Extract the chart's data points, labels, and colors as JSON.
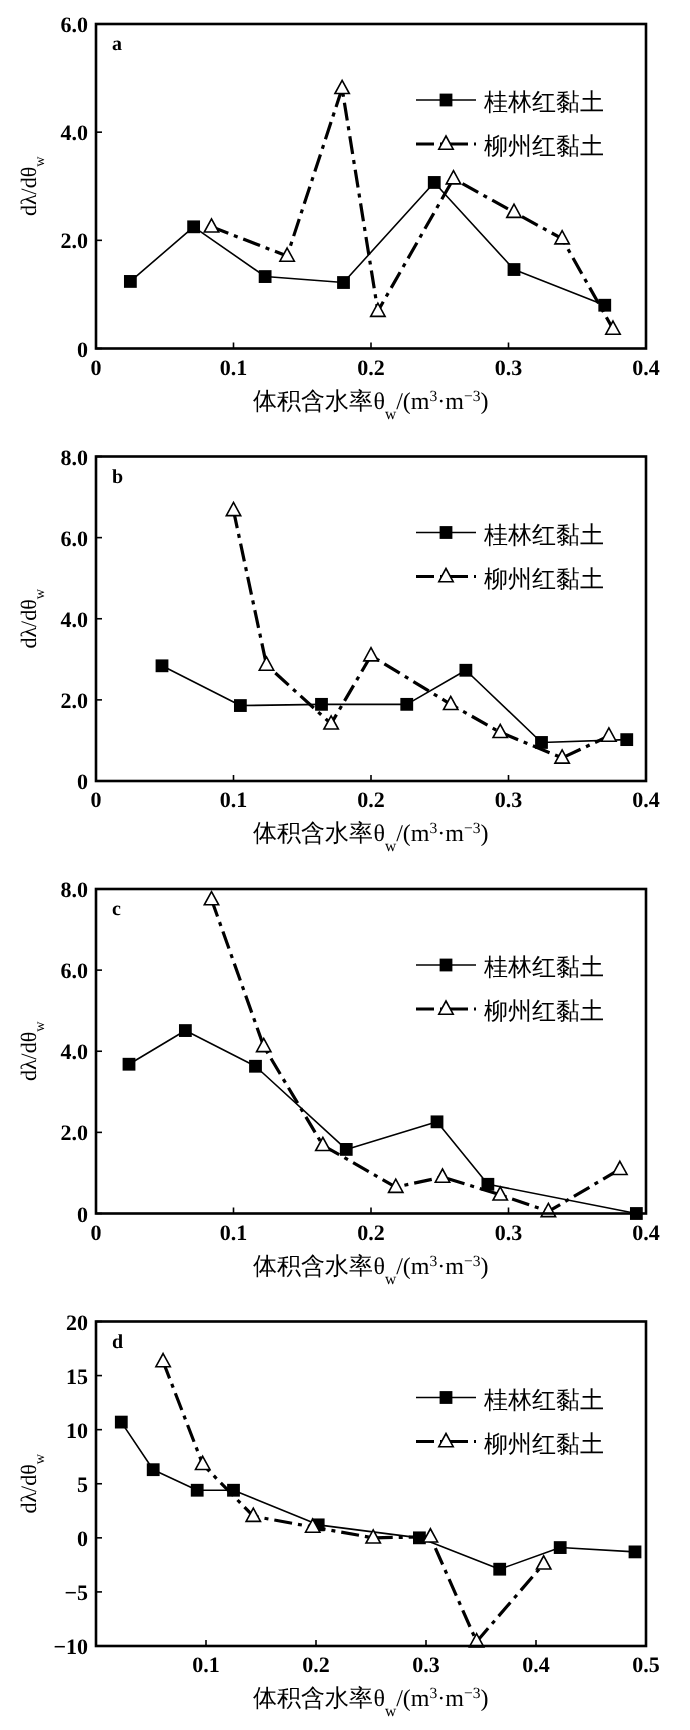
{
  "chart_data": [
    {
      "type": "line",
      "title": "a",
      "xlabel": "体积含水率θ$_{w}$/(m$^{3}$·m$^{−3}$)",
      "ylabel": "dλ/dθ$_{w}$",
      "xlim": [
        0,
        0.4
      ],
      "ylim": [
        0,
        6
      ],
      "xticks": [
        0,
        0.1,
        0.2,
        0.3,
        0.4
      ],
      "yticks": [
        0,
        {
          "value": 2,
          "label": "2.0"
        },
        {
          "value": 4,
          "label": "4.0"
        },
        {
          "value": 6,
          "label": "6.0"
        }
      ],
      "legend": "top right",
      "series": [
        {
          "name": "桂林红黏土",
          "color": "#000000",
          "marker": "square",
          "line_style": "solid",
          "x": [
            0.025,
            0.071,
            0.123,
            0.18,
            0.246,
            0.304,
            0.37
          ],
          "values": [
            1.24,
            2.25,
            1.33,
            1.22,
            3.07,
            1.46,
            0.8
          ]
        },
        {
          "name": "柳州红黏土",
          "color": "#000000",
          "marker": "triangle",
          "line_style": "dashed",
          "x": [
            0.084,
            0.139,
            0.179,
            0.205,
            0.26,
            0.304,
            0.339,
            0.376
          ],
          "values": [
            2.25,
            1.71,
            4.81,
            0.69,
            3.14,
            2.52,
            2.03,
            0.36
          ]
        }
      ]
    },
    {
      "type": "line",
      "title": "b",
      "xlabel": "体积含水率θ$_{w}$/(m$^{3}$·m$^{−3}$)",
      "ylabel": "dλ/dθ$_{w}$",
      "xlim": [
        0,
        0.4
      ],
      "ylim": [
        0,
        8
      ],
      "xticks": [
        0,
        0.1,
        0.2,
        0.3,
        0.4
      ],
      "yticks": [
        0,
        {
          "value": 2,
          "label": "2.0"
        },
        {
          "value": 4,
          "label": "4.0"
        },
        {
          "value": 6,
          "label": "6.0"
        },
        {
          "value": 8,
          "label": "8.0"
        }
      ],
      "legend": "top right",
      "series": [
        {
          "name": "桂林红黏土",
          "color": "#000000",
          "marker": "square",
          "line_style": "solid",
          "x": [
            0.048,
            0.105,
            0.164,
            0.226,
            0.269,
            0.324,
            0.386
          ],
          "values": [
            2.84,
            1.86,
            1.89,
            1.89,
            2.73,
            0.95,
            1.02
          ]
        },
        {
          "name": "柳州红黏土",
          "color": "#000000",
          "marker": "triangle",
          "line_style": "dashed",
          "x": [
            0.1,
            0.124,
            0.171,
            0.2,
            0.258,
            0.294,
            0.339,
            0.373
          ],
          "values": [
            6.67,
            2.86,
            1.41,
            3.09,
            1.89,
            1.2,
            0.57,
            1.11
          ]
        }
      ]
    },
    {
      "type": "line",
      "title": "c",
      "xlabel": "体积含水率θ$_{w}$/(m$^{3}$·m$^{−3}$)",
      "ylabel": "dλ/dθ$_{w}$",
      "xlim": [
        0,
        0.4
      ],
      "ylim": [
        0,
        8
      ],
      "xticks": [
        0,
        0.1,
        0.2,
        0.3,
        0.4
      ],
      "yticks": [
        0,
        {
          "value": 2,
          "label": "2.0"
        },
        {
          "value": 4,
          "label": "4.0"
        },
        {
          "value": 6,
          "label": "6.0"
        },
        {
          "value": 8,
          "label": "8.0"
        }
      ],
      "legend": "top right",
      "series": [
        {
          "name": "桂林红黏土",
          "color": "#000000",
          "marker": "square",
          "line_style": "solid",
          "x": [
            0.024,
            0.065,
            0.116,
            0.182,
            0.248,
            0.285,
            0.393
          ],
          "values": [
            3.68,
            4.51,
            3.63,
            1.58,
            2.26,
            0.72,
            0.0
          ]
        },
        {
          "name": "柳州红黏土",
          "color": "#000000",
          "marker": "triangle",
          "line_style": "dashed",
          "x": [
            0.084,
            0.122,
            0.165,
            0.218,
            0.252,
            0.294,
            0.329,
            0.381
          ],
          "values": [
            7.74,
            4.12,
            1.68,
            0.65,
            0.9,
            0.46,
            0.05,
            1.09
          ]
        }
      ]
    },
    {
      "type": "line",
      "title": "d",
      "xlabel": "体积含水率θ$_{w}$/(m$^{3}$·m$^{−3}$)",
      "ylabel": "dλ/dθ$_{w}$",
      "xlim": [
        0,
        0.5
      ],
      "ylim": [
        -10,
        20
      ],
      "xticks": [
        0.1,
        0.2,
        0.3,
        0.4,
        0.5
      ],
      "yticks": [
        {
          "value": -10,
          "label": "−10"
        },
        {
          "value": -5,
          "label": "−5"
        },
        0,
        5,
        10,
        15,
        20
      ],
      "legend": "top right",
      "series": [
        {
          "name": "桂林红黏土",
          "color": "#000000",
          "marker": "square",
          "line_style": "solid",
          "x": [
            0.023,
            0.052,
            0.092,
            0.125,
            0.202,
            0.294,
            0.367,
            0.422,
            0.49
          ],
          "values": [
            10.7,
            6.3,
            4.4,
            4.4,
            1.2,
            0.0,
            -2.9,
            -0.9,
            -1.3
          ]
        },
        {
          "name": "柳州红黏土",
          "color": "#000000",
          "marker": "triangle",
          "line_style": "dashed",
          "x": [
            0.061,
            0.097,
            0.143,
            0.197,
            0.252,
            0.304,
            0.346,
            0.407
          ],
          "values": [
            16.3,
            6.8,
            2.0,
            1.0,
            0.0,
            0.1,
            -9.6,
            -2.4
          ]
        }
      ]
    }
  ]
}
